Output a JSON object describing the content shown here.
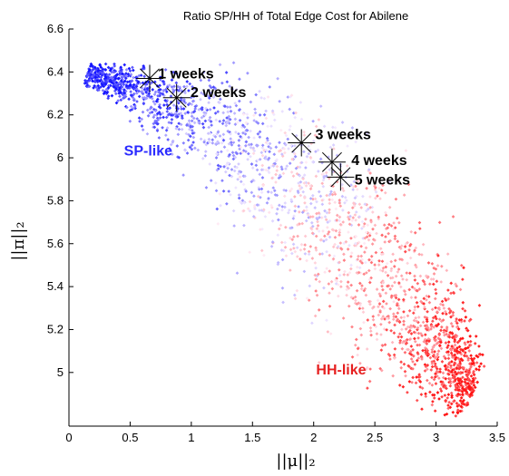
{
  "chart_data": {
    "type": "scatter",
    "title": "Ratio SP/HH of Total Edge Cost for Abilene",
    "xlabel": "||μ||₂",
    "ylabel": "||π||₂",
    "xlim": [
      0,
      3.5
    ],
    "ylim": [
      4.75,
      6.6
    ],
    "x_ticks": [
      "0",
      "0.5",
      "1",
      "1.5",
      "2",
      "2.5",
      "3",
      "3.5"
    ],
    "y_ticks": [
      "6.6",
      "6.4",
      "6.2",
      "6",
      "5.8",
      "5.6",
      "5.4",
      "5.2",
      "5"
    ],
    "grid": false,
    "colors": {
      "sp": "#0000ff",
      "hh": "#ff0000",
      "neutral": "#f4f0f4"
    },
    "annotations": [
      {
        "label": "1 weeks",
        "x": 0.66,
        "y": 6.37
      },
      {
        "label": "2 weeks",
        "x": 0.88,
        "y": 6.28
      },
      {
        "label": "3 weeks",
        "x": 1.9,
        "y": 6.07
      },
      {
        "label": "4 weeks",
        "x": 2.15,
        "y": 5.98
      },
      {
        "label": "5 weeks",
        "x": 2.22,
        "y": 5.91
      }
    ],
    "region_labels": [
      {
        "label": "SP-like",
        "x": 0.45,
        "y": 6.01,
        "color": "#2a2aff"
      },
      {
        "label": "HH-like",
        "x": 2.02,
        "y": 4.99,
        "color": "#e62020"
      }
    ],
    "series": [
      {
        "distribution": "dense band of points, color shifts from blue (SP-like) at upper-left to red (HH-like) at lower-right",
        "centerline": [
          [
            0.15,
            6.4
          ],
          [
            0.5,
            6.33
          ],
          [
            1.0,
            6.2
          ],
          [
            1.5,
            6.03
          ],
          [
            2.0,
            5.8
          ],
          [
            2.4,
            5.55
          ],
          [
            2.8,
            5.28
          ],
          [
            3.1,
            5.08
          ],
          [
            3.3,
            4.9
          ]
        ],
        "band_half_width": [
          0.03,
          0.06,
          0.12,
          0.18,
          0.22,
          0.22,
          0.2,
          0.14,
          0.08
        ],
        "point_count": 2400
      }
    ]
  }
}
